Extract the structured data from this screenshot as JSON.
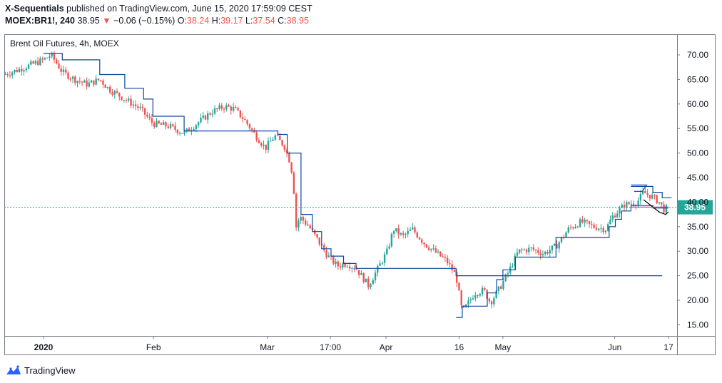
{
  "header": {
    "author": "X-Sequentials",
    "published": "published on TradingView.com, June 15, 2020 17:59:09 CEST",
    "symbol": "MOEX:BR1!, 240",
    "last": "38.95",
    "change_arrow": "▼",
    "change": "−0.06 (−0.15%)",
    "o_label": "O:",
    "o_val": "38.24",
    "h_label": "H:",
    "h_val": "39.17",
    "l_label": "L:",
    "l_val": "37.54",
    "c_label": "C:",
    "c_val": "38.95"
  },
  "footer": {
    "brand": "TradingView",
    "logo_icon": "tradingview-logo-icon"
  },
  "colors": {
    "up": "#26a69a",
    "down": "#ef5350",
    "line": "#0d47a1",
    "price_tag": "#26a69a",
    "purple": "#7e57c2"
  },
  "chart_data": {
    "type": "candlestick",
    "title": "Brent Oil Futures, 4h, MOEX",
    "ylim": [
      12.5,
      73.5
    ],
    "y_ticks": [
      70,
      65,
      60,
      55,
      50,
      45,
      40,
      35,
      30,
      25,
      20,
      15
    ],
    "y_tick_labels": [
      "70.00",
      "65.00",
      "60.00",
      "55.00",
      "50.00",
      "45.00",
      "40.00",
      "35.00",
      "30.00",
      "25.00",
      "20.00",
      "15.00"
    ],
    "x_ticks": [
      {
        "label": "2020",
        "t": 0.0
      },
      {
        "label": "Feb",
        "t": 0.176
      },
      {
        "label": "Mar",
        "t": 0.358
      },
      {
        "label": "17:00",
        "t": 0.459
      },
      {
        "label": "Apr",
        "t": 0.548
      },
      {
        "label": "16",
        "t": 0.665
      },
      {
        "label": "May",
        "t": 0.735
      },
      {
        "label": "Jun",
        "t": 0.914
      },
      {
        "label": "17",
        "t": 1.0
      }
    ],
    "x_range": [
      -0.063,
      1.054
    ],
    "last_price": 38.95,
    "last_price_label": "38.95",
    "close_path": [
      [
        -0.063,
        66.0
      ],
      [
        -0.04,
        67.0
      ],
      [
        -0.02,
        68.0
      ],
      [
        0.0,
        69.0
      ],
      [
        0.012,
        70.0
      ],
      [
        0.02,
        68.5
      ],
      [
        0.03,
        66.5
      ],
      [
        0.05,
        65.0
      ],
      [
        0.07,
        64.0
      ],
      [
        0.09,
        65.0
      ],
      [
        0.105,
        63.0
      ],
      [
        0.13,
        61.0
      ],
      [
        0.155,
        59.0
      ],
      [
        0.175,
        56.0
      ],
      [
        0.2,
        55.5
      ],
      [
        0.225,
        54.0
      ],
      [
        0.25,
        56.5
      ],
      [
        0.27,
        58.5
      ],
      [
        0.29,
        59.5
      ],
      [
        0.305,
        59.0
      ],
      [
        0.32,
        57.0
      ],
      [
        0.34,
        53.5
      ],
      [
        0.355,
        51.0
      ],
      [
        0.37,
        53.5
      ],
      [
        0.385,
        51.5
      ],
      [
        0.395,
        48.0
      ],
      [
        0.4,
        44.0
      ],
      [
        0.403,
        34.5
      ],
      [
        0.41,
        37.0
      ],
      [
        0.425,
        35.0
      ],
      [
        0.44,
        32.0
      ],
      [
        0.455,
        29.0
      ],
      [
        0.47,
        27.0
      ],
      [
        0.485,
        27.5
      ],
      [
        0.5,
        26.5
      ],
      [
        0.52,
        23.0
      ],
      [
        0.535,
        26.5
      ],
      [
        0.55,
        30.0
      ],
      [
        0.56,
        34.5
      ],
      [
        0.575,
        33.0
      ],
      [
        0.59,
        34.5
      ],
      [
        0.61,
        31.5
      ],
      [
        0.63,
        29.5
      ],
      [
        0.645,
        28.0
      ],
      [
        0.66,
        25.0
      ],
      [
        0.67,
        17.5
      ],
      [
        0.69,
        21.5
      ],
      [
        0.705,
        22.0
      ],
      [
        0.715,
        19.5
      ],
      [
        0.73,
        22.5
      ],
      [
        0.745,
        26.0
      ],
      [
        0.76,
        30.0
      ],
      [
        0.78,
        30.5
      ],
      [
        0.8,
        29.5
      ],
      [
        0.82,
        31.0
      ],
      [
        0.84,
        34.5
      ],
      [
        0.86,
        36.0
      ],
      [
        0.88,
        35.0
      ],
      [
        0.9,
        34.5
      ],
      [
        0.91,
        37.0
      ],
      [
        0.93,
        39.5
      ],
      [
        0.95,
        40.0
      ],
      [
        0.96,
        42.0
      ],
      [
        0.975,
        41.0
      ],
      [
        0.985,
        40.0
      ],
      [
        0.993,
        38.5
      ],
      [
        1.0,
        38.95
      ]
    ],
    "tdst_line": [
      [
        0.0,
        70.3
      ],
      [
        0.03,
        70.3
      ],
      [
        0.03,
        69.0
      ],
      [
        0.09,
        69.0
      ],
      [
        0.09,
        66.0
      ],
      [
        0.13,
        66.0
      ],
      [
        0.13,
        63.2
      ],
      [
        0.16,
        63.2
      ],
      [
        0.16,
        61.0
      ],
      [
        0.175,
        61.0
      ],
      [
        0.175,
        57.5
      ],
      [
        0.225,
        57.5
      ],
      [
        0.225,
        54.5
      ],
      [
        0.375,
        54.5
      ],
      [
        0.375,
        53.8
      ],
      [
        0.39,
        53.8
      ],
      [
        0.39,
        50.0
      ],
      [
        0.412,
        50.0
      ],
      [
        0.412,
        37.5
      ],
      [
        0.43,
        37.5
      ],
      [
        0.43,
        34.0
      ],
      [
        0.445,
        34.0
      ],
      [
        0.445,
        30.5
      ],
      [
        0.46,
        30.5
      ],
      [
        0.46,
        29.0
      ],
      [
        0.48,
        29.0
      ],
      [
        0.48,
        27.5
      ],
      [
        0.5,
        27.5
      ],
      [
        0.5,
        26.5
      ],
      [
        0.66,
        26.5
      ],
      [
        0.66,
        25.0
      ],
      [
        0.99,
        25.0
      ]
    ],
    "support_line": [
      [
        0.66,
        16.5
      ],
      [
        0.67,
        16.5
      ],
      [
        0.67,
        18.8
      ],
      [
        0.71,
        18.8
      ],
      [
        0.71,
        21.5
      ],
      [
        0.725,
        21.5
      ],
      [
        0.725,
        24.2
      ],
      [
        0.735,
        24.2
      ],
      [
        0.735,
        26.2
      ],
      [
        0.755,
        26.2
      ],
      [
        0.755,
        28.8
      ],
      [
        0.82,
        28.8
      ],
      [
        0.82,
        32.8
      ],
      [
        0.905,
        32.8
      ],
      [
        0.905,
        35.0
      ],
      [
        0.915,
        35.0
      ],
      [
        0.915,
        36.5
      ],
      [
        0.925,
        36.5
      ],
      [
        0.925,
        38.2
      ],
      [
        0.94,
        38.2
      ],
      [
        0.94,
        39.3
      ],
      [
        0.975,
        39.3
      ],
      [
        0.975,
        38.8
      ],
      [
        1.0,
        38.8
      ]
    ],
    "resistance_line": [
      [
        0.94,
        43.2
      ],
      [
        0.975,
        43.2
      ],
      [
        0.975,
        42.0
      ],
      [
        0.99,
        42.0
      ],
      [
        0.99,
        40.9
      ],
      [
        1.005,
        40.9
      ]
    ],
    "peak_marker": [
      [
        0.94,
        43.5
      ],
      [
        0.965,
        43.5
      ],
      [
        0.958,
        42.2
      ],
      [
        0.945,
        42.2
      ]
    ],
    "triangle": [
      [
        0.96,
        40.5
      ],
      [
        0.985,
        38.0
      ],
      [
        0.995,
        37.5
      ],
      [
        1.0,
        38.0
      ]
    ],
    "purple_line": [
      [
        0.94,
        39.0
      ],
      [
        1.0,
        39.0
      ]
    ]
  }
}
